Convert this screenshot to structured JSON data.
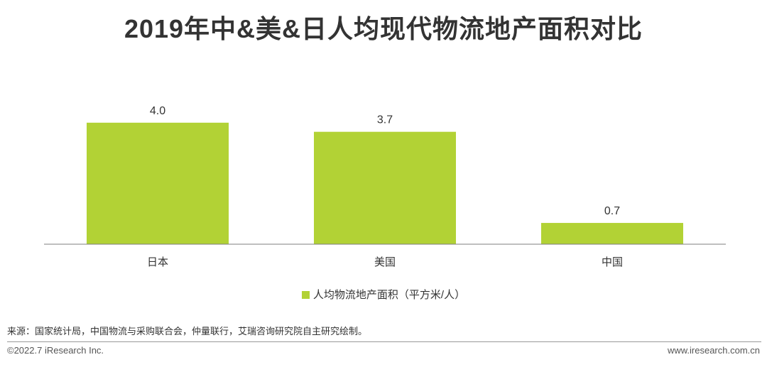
{
  "colors": {
    "bar": "#b2d235",
    "axis": "#7f7f7f",
    "text": "#333333"
  },
  "chart_data": {
    "type": "bar",
    "title": "2019年中&美&日人均现代物流地产面积对比",
    "categories": [
      "日本",
      "美国",
      "中国"
    ],
    "series": [
      {
        "name": "人均物流地产面积（平方米/人）",
        "values": [
          4.0,
          3.7,
          0.7
        ],
        "labels": [
          "4.0",
          "3.7",
          "0.7"
        ]
      }
    ],
    "ylim": [
      0,
      4.3
    ],
    "grid": false,
    "legend": "bottom-center"
  },
  "source": "来源：国家统计局，中国物流与采购联合会，仲量联行，艾瑞咨询研究院自主研究绘制。",
  "footer": {
    "copyright": "©2022.7 iResearch Inc.",
    "website": "www.iresearch.com.cn"
  }
}
